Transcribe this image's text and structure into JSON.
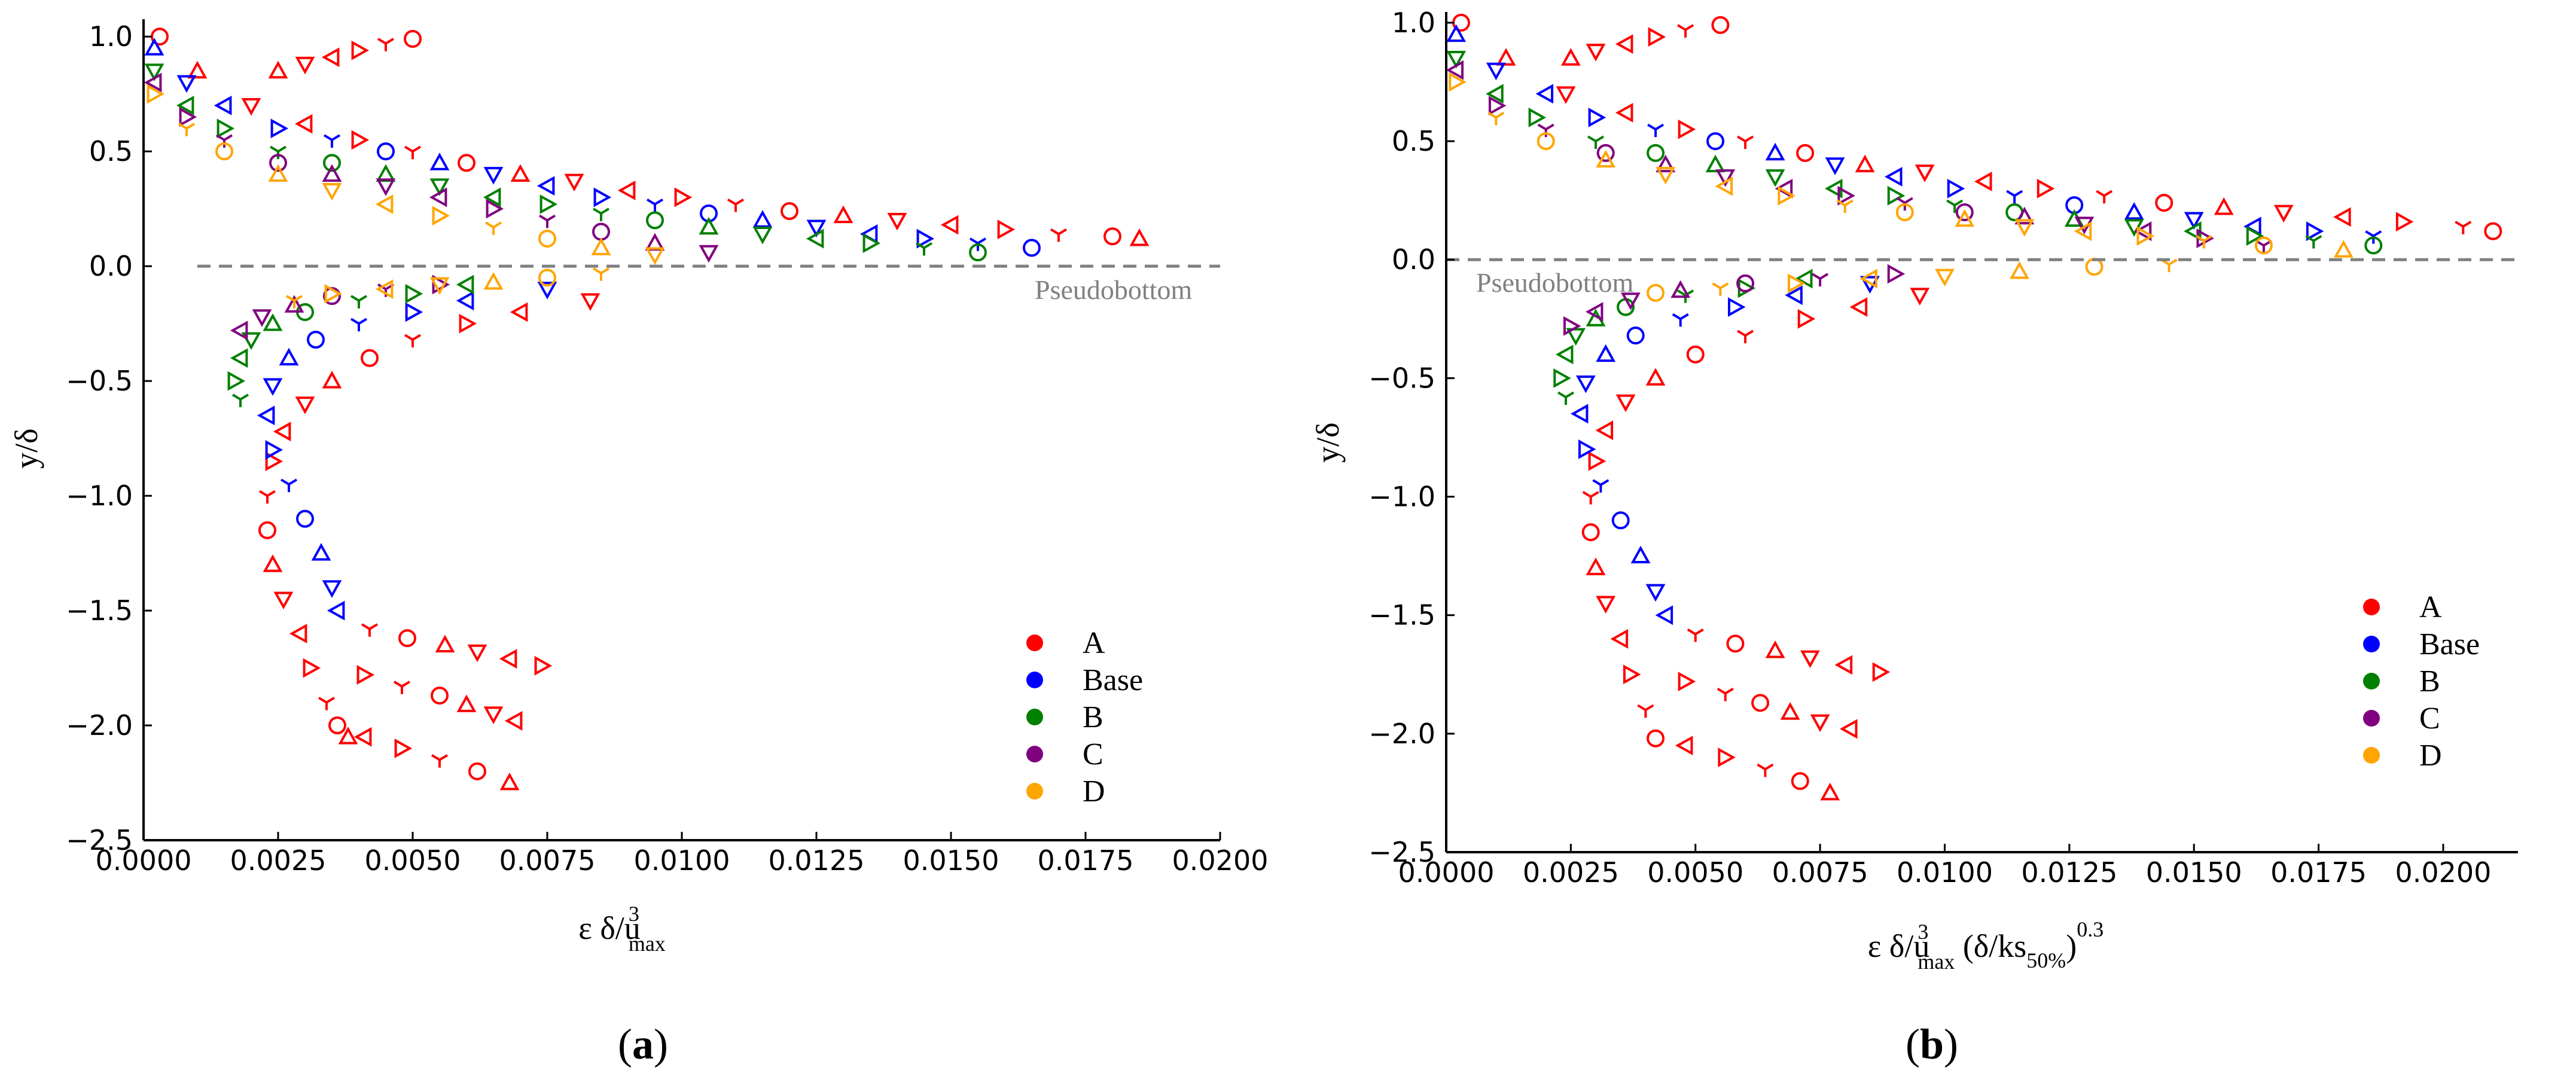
{
  "figure": {
    "panels": [
      {
        "caption": {
          "open": "(",
          "letter": "a",
          "close": ")"
        },
        "pseudobottom_label": "Pseudobottom",
        "xlabel": {
          "base": "ε δ/u",
          "sup": "3",
          "sub": "max",
          "suffix": ""
        },
        "ylabel": "y/δ"
      },
      {
        "caption": {
          "open": "(",
          "letter": "b",
          "close": ")"
        },
        "pseudobottom_label": "Pseudobottom",
        "xlabel": {
          "base": "ε δ/u",
          "sup": "3",
          "sub": "max",
          "suffix": " (δ/ks",
          "suffix_sub": "50%",
          "suffix_close": ")",
          "suffix_sup": "0.3"
        },
        "ylabel": "y/δ"
      }
    ]
  },
  "chart_data": [
    {
      "type": "scatter",
      "title": "",
      "xlabel": "ε δ/u³max",
      "ylabel": "y/δ",
      "xlim": [
        0.0,
        0.02
      ],
      "ylim": [
        -2.5,
        1.05
      ],
      "xticks": [
        "0.0000",
        "0.0025",
        "0.0050",
        "0.0075",
        "0.0100",
        "0.0125",
        "0.0150",
        "0.0175",
        "0.0200"
      ],
      "xtick_values": [
        0,
        0.0025,
        0.005,
        0.0075,
        0.01,
        0.0125,
        0.015,
        0.0175,
        0.02
      ],
      "yticks": [
        "1.0",
        "0.5",
        "0.0",
        "−0.5",
        "−1.0",
        "−1.5",
        "−2.0",
        "−2.5"
      ],
      "ytick_values": [
        1.0,
        0.5,
        0.0,
        -0.5,
        -1.0,
        -1.5,
        -2.0,
        -2.5
      ],
      "legend": {
        "position": "bottom-right",
        "entries": [
          "A",
          "Base",
          "B",
          "C",
          "D"
        ]
      },
      "reference_line": {
        "y": 0.0,
        "label": "Pseudobottom",
        "style": "dashed"
      },
      "series": [
        {
          "name": "A",
          "color": "#ff0000",
          "upper": {
            "x": [
              0.0003,
              0.001,
              0.002,
              0.003,
              0.004,
              0.005,
              0.006,
              0.007,
              0.008,
              0.009,
              0.01,
              0.011,
              0.012,
              0.013,
              0.014,
              0.015,
              0.016,
              0.017,
              0.018,
              0.0185
            ],
            "y": [
              1.0,
              0.85,
              0.7,
              0.62,
              0.55,
              0.5,
              0.45,
              0.4,
              0.37,
              0.33,
              0.3,
              0.27,
              0.24,
              0.22,
              0.2,
              0.18,
              0.16,
              0.14,
              0.13,
              0.12
            ]
          },
          "upper_outliers": {
            "x": [
              0.0025,
              0.003,
              0.0035,
              0.004,
              0.0045,
              0.005
            ],
            "y": [
              0.85,
              0.88,
              0.91,
              0.94,
              0.97,
              0.99
            ]
          },
          "lower": {
            "x": [
              0.0083,
              0.007,
              0.006,
              0.005,
              0.0042,
              0.0035,
              0.003,
              0.0026,
              0.0024,
              0.0023,
              0.0023,
              0.0024,
              0.0026,
              0.0029,
              0.0031,
              0.0034,
              0.0036,
              0.0038
            ],
            "y": [
              -0.15,
              -0.2,
              -0.25,
              -0.32,
              -0.4,
              -0.5,
              -0.6,
              -0.72,
              -0.85,
              -1.0,
              -1.15,
              -1.3,
              -1.45,
              -1.6,
              -1.75,
              -1.9,
              -2.0,
              -2.05
            ]
          },
          "lower_tail_1": {
            "x": [
              0.0041,
              0.0048,
              0.0055,
              0.0062,
              0.0068
            ],
            "y": [
              -2.05,
              -2.1,
              -2.15,
              -2.2,
              -2.25
            ]
          },
          "lower_tail_2": {
            "x": [
              0.0041,
              0.0048,
              0.0055,
              0.006,
              0.0065,
              0.0069
            ],
            "y": [
              -1.78,
              -1.83,
              -1.87,
              -1.91,
              -1.95,
              -1.98
            ]
          },
          "lower_tail_3": {
            "x": [
              0.0042,
              0.0049,
              0.0056,
              0.0062,
              0.0068,
              0.0074
            ],
            "y": [
              -1.58,
              -1.62,
              -1.65,
              -1.68,
              -1.71,
              -1.74
            ]
          }
        },
        {
          "name": "Base",
          "color": "#0000ff",
          "upper": {
            "x": [
              0.0002,
              0.0008,
              0.0015,
              0.0025,
              0.0035,
              0.0045,
              0.0055,
              0.0065,
              0.0075,
              0.0085,
              0.0095,
              0.0105,
              0.0115,
              0.0125,
              0.0135,
              0.0145,
              0.0155,
              0.0165
            ],
            "y": [
              0.95,
              0.8,
              0.7,
              0.6,
              0.55,
              0.5,
              0.45,
              0.4,
              0.35,
              0.3,
              0.27,
              0.23,
              0.2,
              0.17,
              0.14,
              0.12,
              0.1,
              0.08
            ]
          },
          "lower": {
            "x": [
              0.0075,
              0.006,
              0.005,
              0.004,
              0.0032,
              0.0027,
              0.0024,
              0.0023,
              0.0024,
              0.0027,
              0.003,
              0.0033,
              0.0035,
              0.0036
            ],
            "y": [
              -0.1,
              -0.15,
              -0.2,
              -0.25,
              -0.32,
              -0.4,
              -0.52,
              -0.65,
              -0.8,
              -0.95,
              -1.1,
              -1.25,
              -1.4,
              -1.5
            ]
          }
        },
        {
          "name": "B",
          "color": "#008000",
          "upper": {
            "x": [
              0.0002,
              0.0008,
              0.0015,
              0.0025,
              0.0035,
              0.0045,
              0.0055,
              0.0065,
              0.0075,
              0.0085,
              0.0095,
              0.0105,
              0.0115,
              0.0125,
              0.0135,
              0.0145,
              0.0155
            ],
            "y": [
              0.85,
              0.7,
              0.6,
              0.5,
              0.45,
              0.4,
              0.35,
              0.3,
              0.27,
              0.23,
              0.2,
              0.17,
              0.14,
              0.12,
              0.1,
              0.08,
              0.06
            ]
          },
          "lower": {
            "x": [
              0.006,
              0.005,
              0.004,
              0.003,
              0.0024,
              0.002,
              0.0018,
              0.0017,
              0.0018
            ],
            "y": [
              -0.08,
              -0.12,
              -0.15,
              -0.2,
              -0.25,
              -0.32,
              -0.4,
              -0.5,
              -0.58
            ]
          }
        },
        {
          "name": "C",
          "color": "#800080",
          "upper": {
            "x": [
              0.0002,
              0.0008,
              0.0015,
              0.0025,
              0.0035,
              0.0045,
              0.0055,
              0.0065,
              0.0075,
              0.0085,
              0.0095,
              0.0105
            ],
            "y": [
              0.8,
              0.65,
              0.55,
              0.45,
              0.4,
              0.35,
              0.3,
              0.25,
              0.2,
              0.15,
              0.1,
              0.06
            ]
          },
          "lower": {
            "x": [
              0.0055,
              0.0045,
              0.0035,
              0.0028,
              0.0022,
              0.0018
            ],
            "y": [
              -0.08,
              -0.1,
              -0.13,
              -0.17,
              -0.22,
              -0.28
            ]
          }
        },
        {
          "name": "D",
          "color": "#ffa500",
          "upper": {
            "x": [
              0.0002,
              0.0008,
              0.0015,
              0.0025,
              0.0035,
              0.0045,
              0.0055,
              0.0065,
              0.0075,
              0.0085,
              0.0095
            ],
            "y": [
              0.75,
              0.6,
              0.5,
              0.4,
              0.33,
              0.27,
              0.22,
              0.17,
              0.12,
              0.08,
              0.05
            ]
          },
          "lower": {
            "x": [
              0.0085,
              0.0075,
              0.0065,
              0.0055,
              0.0045,
              0.0035,
              0.0028
            ],
            "y": [
              -0.03,
              -0.05,
              -0.07,
              -0.08,
              -0.1,
              -0.12,
              -0.15
            ]
          }
        }
      ]
    },
    {
      "type": "scatter",
      "title": "",
      "xlabel": "ε δ/u³max (δ/ks50%)^0.3",
      "ylabel": "y/δ",
      "xlim": [
        0.0,
        0.0215
      ],
      "ylim": [
        -2.5,
        1.02
      ],
      "xticks": [
        "0.0000",
        "0.0025",
        "0.0050",
        "0.0075",
        "0.0100",
        "0.0125",
        "0.0150",
        "0.0175",
        "0.0200"
      ],
      "xtick_values": [
        0,
        0.0025,
        0.005,
        0.0075,
        0.01,
        0.0125,
        0.015,
        0.0175,
        0.02
      ],
      "yticks": [
        "1.0",
        "0.5",
        "0.0",
        "−0.5",
        "−1.0",
        "−1.5",
        "−2.0",
        "−2.5"
      ],
      "ytick_values": [
        1.0,
        0.5,
        0.0,
        -0.5,
        -1.0,
        -1.5,
        -2.0,
        -2.5
      ],
      "legend": {
        "position": "bottom-right",
        "entries": [
          "A",
          "Base",
          "B",
          "C",
          "D"
        ]
      },
      "reference_line": {
        "y": 0.0,
        "label": "Pseudobottom",
        "style": "dashed"
      },
      "series": [
        {
          "name": "A",
          "color": "#ff0000",
          "upper": {
            "x": [
              0.0003,
              0.0012,
              0.0024,
              0.0036,
              0.0048,
              0.006,
              0.0072,
              0.0084,
              0.0096,
              0.0108,
              0.012,
              0.0132,
              0.0144,
              0.0156,
              0.0168,
              0.018,
              0.0192,
              0.0204,
              0.021
            ],
            "y": [
              1.0,
              0.85,
              0.7,
              0.62,
              0.55,
              0.5,
              0.45,
              0.4,
              0.37,
              0.33,
              0.3,
              0.27,
              0.24,
              0.22,
              0.2,
              0.18,
              0.16,
              0.14,
              0.12
            ]
          },
          "upper_outliers": {
            "x": [
              0.0025,
              0.003,
              0.0036,
              0.0042,
              0.0048,
              0.0055
            ],
            "y": [
              0.85,
              0.88,
              0.91,
              0.94,
              0.97,
              0.99
            ]
          },
          "lower": {
            "x": [
              0.0095,
              0.0083,
              0.0072,
              0.006,
              0.005,
              0.0042,
              0.0036,
              0.0032,
              0.003,
              0.0029,
              0.0029,
              0.003,
              0.0032,
              0.0035,
              0.0037,
              0.004,
              0.0042
            ],
            "y": [
              -0.15,
              -0.2,
              -0.25,
              -0.32,
              -0.4,
              -0.5,
              -0.6,
              -0.72,
              -0.85,
              -1.0,
              -1.15,
              -1.3,
              -1.45,
              -1.6,
              -1.75,
              -1.9,
              -2.02
            ]
          },
          "lower_tail_1": {
            "x": [
              0.0048,
              0.0056,
              0.0064,
              0.0071,
              0.0077
            ],
            "y": [
              -2.05,
              -2.1,
              -2.15,
              -2.2,
              -2.25
            ]
          },
          "lower_tail_2": {
            "x": [
              0.0048,
              0.0056,
              0.0063,
              0.0069,
              0.0075,
              0.0081
            ],
            "y": [
              -1.78,
              -1.83,
              -1.87,
              -1.91,
              -1.95,
              -1.98
            ]
          },
          "lower_tail_3": {
            "x": [
              0.005,
              0.0058,
              0.0066,
              0.0073,
              0.008,
              0.0087
            ],
            "y": [
              -1.58,
              -1.62,
              -1.65,
              -1.68,
              -1.71,
              -1.74
            ]
          }
        },
        {
          "name": "Base",
          "color": "#0000ff",
          "upper": {
            "x": [
              0.0002,
              0.001,
              0.002,
              0.003,
              0.0042,
              0.0054,
              0.0066,
              0.0078,
              0.009,
              0.0102,
              0.0114,
              0.0126,
              0.0138,
              0.015,
              0.0162,
              0.0174,
              0.0186
            ],
            "y": [
              0.95,
              0.8,
              0.7,
              0.6,
              0.55,
              0.5,
              0.45,
              0.4,
              0.35,
              0.3,
              0.27,
              0.23,
              0.2,
              0.17,
              0.14,
              0.12,
              0.1
            ]
          },
          "lower": {
            "x": [
              0.0085,
              0.007,
              0.0058,
              0.0047,
              0.0038,
              0.0032,
              0.0028,
              0.0027,
              0.0028,
              0.0031,
              0.0035,
              0.0039,
              0.0042,
              0.0044
            ],
            "y": [
              -0.1,
              -0.15,
              -0.2,
              -0.25,
              -0.32,
              -0.4,
              -0.52,
              -0.65,
              -0.8,
              -0.95,
              -1.1,
              -1.25,
              -1.4,
              -1.5
            ]
          }
        },
        {
          "name": "B",
          "color": "#008000",
          "upper": {
            "x": [
              0.0002,
              0.001,
              0.0018,
              0.003,
              0.0042,
              0.0054,
              0.0066,
              0.0078,
              0.009,
              0.0102,
              0.0114,
              0.0126,
              0.0138,
              0.015,
              0.0162,
              0.0174,
              0.0186
            ],
            "y": [
              0.85,
              0.7,
              0.6,
              0.5,
              0.45,
              0.4,
              0.35,
              0.3,
              0.27,
              0.23,
              0.2,
              0.17,
              0.14,
              0.12,
              0.1,
              0.08,
              0.06
            ]
          },
          "lower": {
            "x": [
              0.0072,
              0.006,
              0.0048,
              0.0036,
              0.003,
              0.0026,
              0.0024,
              0.0023,
              0.0024
            ],
            "y": [
              -0.08,
              -0.12,
              -0.15,
              -0.2,
              -0.25,
              -0.32,
              -0.4,
              -0.5,
              -0.58
            ]
          }
        },
        {
          "name": "C",
          "color": "#800080",
          "upper": {
            "x": [
              0.0002,
              0.001,
              0.002,
              0.0032,
              0.0044,
              0.0056,
              0.0068,
              0.008,
              0.0092,
              0.0104,
              0.0116,
              0.0128,
              0.014,
              0.0152,
              0.0164
            ],
            "y": [
              0.8,
              0.65,
              0.55,
              0.45,
              0.4,
              0.35,
              0.3,
              0.27,
              0.24,
              0.2,
              0.18,
              0.15,
              0.12,
              0.09,
              0.06
            ]
          },
          "lower": {
            "x": [
              0.009,
              0.0075,
              0.006,
              0.0047,
              0.0037,
              0.003,
              0.0025
            ],
            "y": [
              -0.06,
              -0.08,
              -0.1,
              -0.13,
              -0.17,
              -0.22,
              -0.28
            ]
          }
        },
        {
          "name": "D",
          "color": "#ffa500",
          "upper": {
            "x": [
              0.0002,
              0.001,
              0.002,
              0.0032,
              0.0044,
              0.0056,
              0.0068,
              0.008,
              0.0092,
              0.0104,
              0.0116,
              0.0128,
              0.014,
              0.0152,
              0.0164,
              0.018
            ],
            "y": [
              0.75,
              0.6,
              0.5,
              0.42,
              0.36,
              0.31,
              0.27,
              0.23,
              0.2,
              0.17,
              0.14,
              0.12,
              0.1,
              0.08,
              0.06,
              0.04
            ]
          },
          "lower": {
            "x": [
              0.0145,
              0.013,
              0.0115,
              0.01,
              0.0085,
              0.007,
              0.0055,
              0.0042
            ],
            "y": [
              -0.02,
              -0.03,
              -0.05,
              -0.07,
              -0.08,
              -0.1,
              -0.12,
              -0.14
            ]
          }
        }
      ]
    }
  ]
}
